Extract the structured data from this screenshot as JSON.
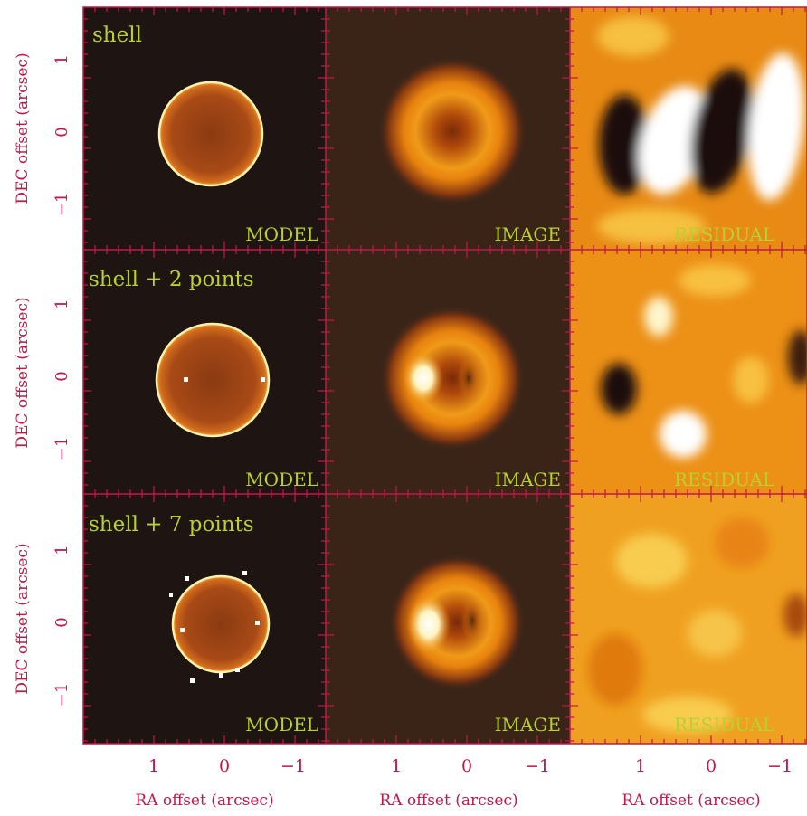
{
  "figure": {
    "colors": {
      "axis": "#c01848",
      "label_text": "#c01848",
      "panel_label": "#b8d030",
      "background_dark": "#1e1512",
      "image_bg": "#3a2418"
    },
    "rows": [
      {
        "title": "shell",
        "panels": [
          "MODEL",
          "IMAGE",
          "RESIDUAL"
        ]
      },
      {
        "title": "shell + 2 points",
        "panels": [
          "MODEL",
          "IMAGE",
          "RESIDUAL"
        ]
      },
      {
        "title": "shell + 7 points",
        "panels": [
          "MODEL",
          "IMAGE",
          "RESIDUAL"
        ]
      }
    ],
    "y_axis_label": "DEC offset (arcsec)",
    "x_axis_label": "RA offset (arcsec)",
    "y_ticks": [
      "1",
      "0",
      "−1"
    ],
    "x_ticks": [
      "1",
      "0",
      "−1"
    ]
  }
}
